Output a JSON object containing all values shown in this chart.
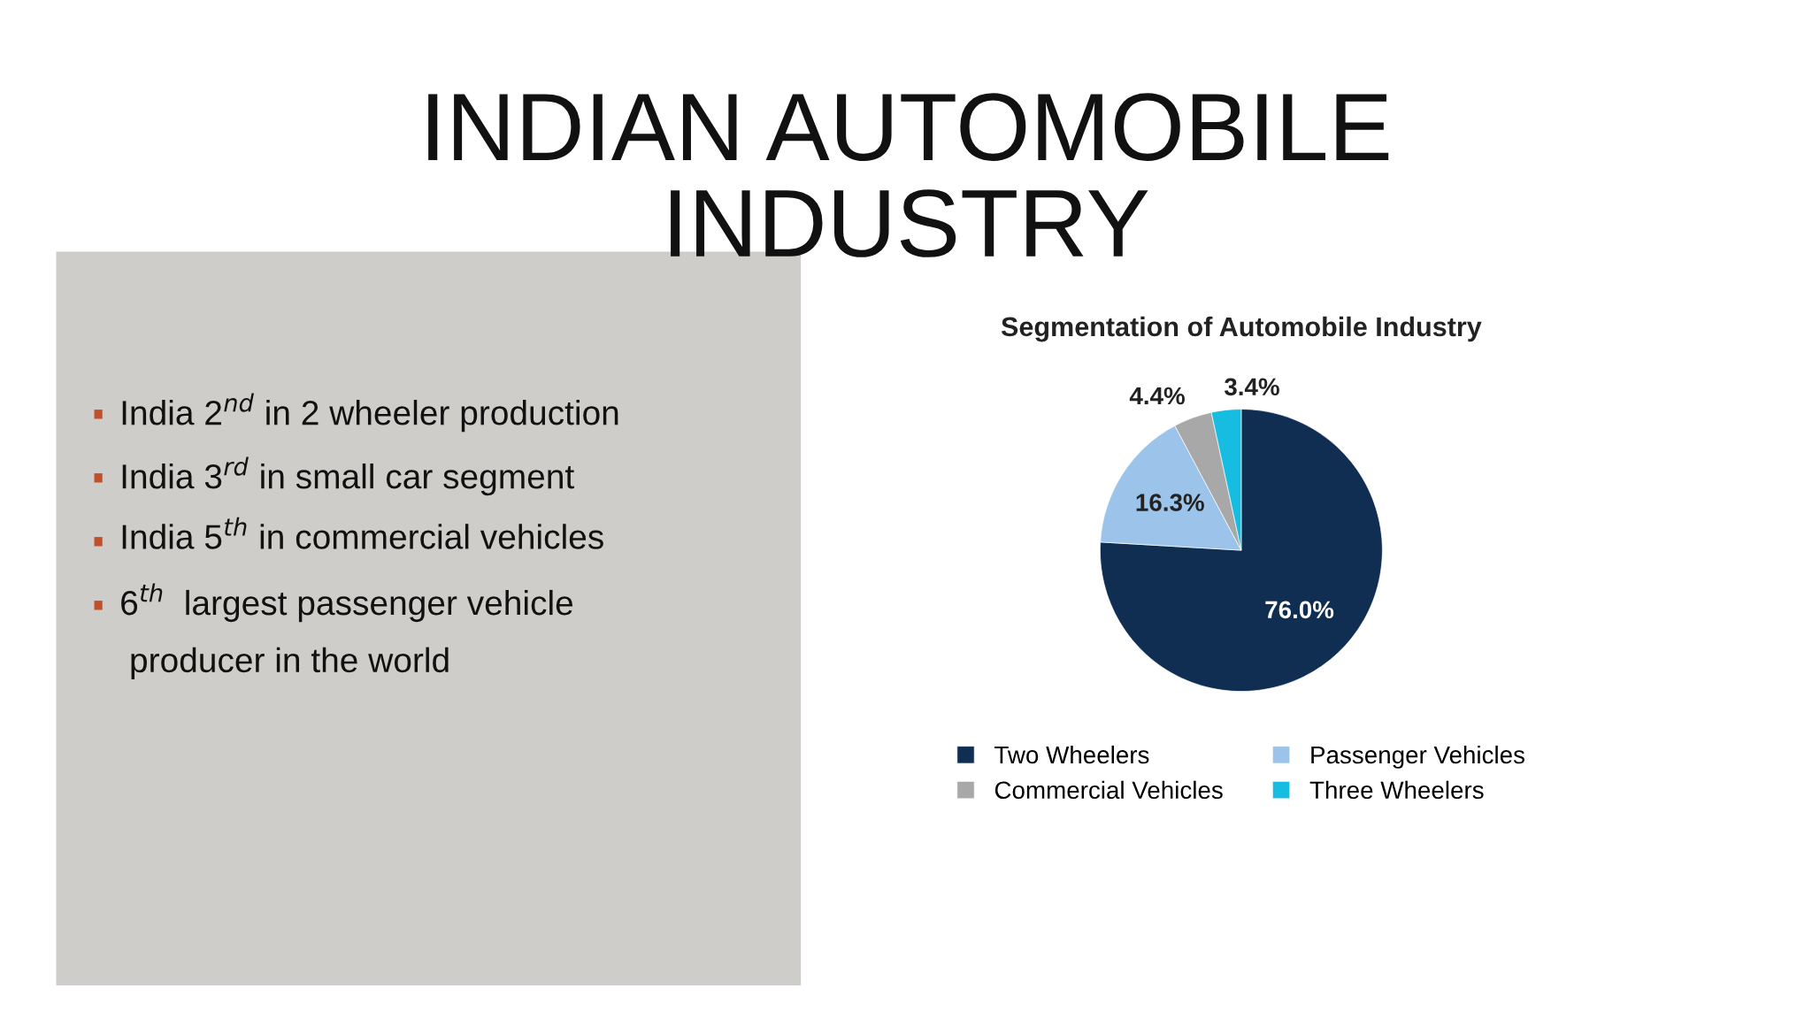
{
  "chart_data": [
    {
      "type": "other",
      "title": "INDIAN AUTOMOBILE\nINDUSTRY",
      "annotations": [
        "India 2$^{nd}$ in 2 wheeler production",
        "India 3$^{rd}$ in small car segment",
        "India 5$^{th}$ in commercial vehicles",
        "6$^{th}$  largest passenger vehicle\n producer in the world"
      ]
    },
    {
      "type": "pie",
      "title": "Segmentation of Automobile Industry",
      "categories": [
        "Two Wheelers",
        "Passenger Vehicles",
        "Commercial Vehicles",
        "Three Wheelers"
      ],
      "values": [
        76.0,
        16.3,
        4.4,
        3.4
      ],
      "colors": [
        "#102d52",
        "#9cc4ea",
        "#a8a8a8",
        "#16bde0"
      ],
      "value_labels": [
        "76.0%",
        "16.3%",
        "4.4%",
        "3.4%"
      ],
      "legend": "bottom"
    }
  ]
}
